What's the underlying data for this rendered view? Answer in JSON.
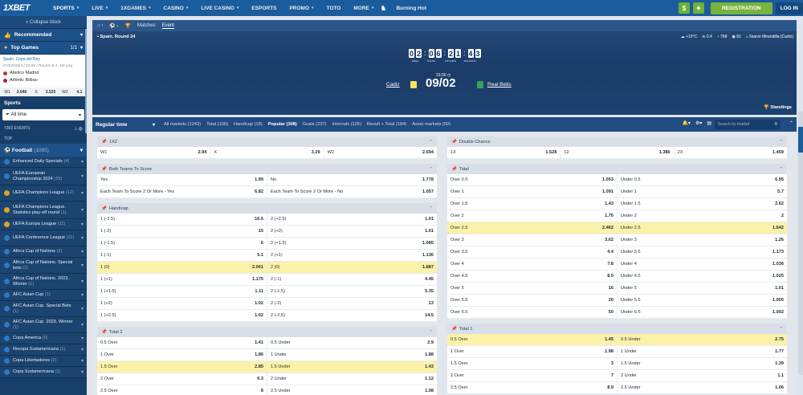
{
  "header": {
    "logo": "1XBET",
    "nav": [
      {
        "label": "SPORTS",
        "chev": true,
        "active": true
      },
      {
        "label": "LIVE",
        "chev": true
      },
      {
        "label": "1XGAMES",
        "chev": true
      },
      {
        "label": "CASINO",
        "chev": true
      },
      {
        "label": "LIVE CASINO",
        "chev": true
      },
      {
        "label": "ESPORTS",
        "chev": false
      },
      {
        "label": "PROMO",
        "chev": true
      },
      {
        "label": "TOTO",
        "chev": false
      },
      {
        "label": "MORE",
        "chev": true
      }
    ],
    "promo": "Burning Hot",
    "register": "REGISTRATION",
    "login": "LOG IN",
    "dollar": "$"
  },
  "sidebar": {
    "collapse": "Collapse block",
    "recommended": "Recommended",
    "top_games": "Top Games",
    "top_pager": "1/1",
    "game": {
      "league": "Spain. Copa del Rey",
      "date": "07/02/2024 / 23:00 / Round of 4. 1st Leg",
      "home": "Atletico Madrid",
      "away": "Athletic Bilbao",
      "odds": [
        [
          "W1",
          "2.046"
        ],
        [
          "X",
          "3.525"
        ],
        [
          "W2",
          "4.1"
        ]
      ]
    },
    "sports": "Sports",
    "filter": "All time",
    "events": "7363 EVENTS",
    "top": "TOP",
    "football": "Football",
    "football_count": "(1085)",
    "leagues": [
      {
        "name": "Enhanced Daily Specials",
        "count": "(4)",
        "cup": false,
        "h": 14
      },
      {
        "name": "UEFA European Championship 2024",
        "count": "(15)",
        "cup": false,
        "h": 22
      },
      {
        "name": "UEFA Champions League",
        "count": "(12)",
        "cup": true,
        "h": 20
      },
      {
        "name": "UEFA Champions League. Statistics play-off round",
        "count": "(1)",
        "cup": true,
        "h": 22
      },
      {
        "name": "UEFA Europa League",
        "count": "(11)",
        "cup": true,
        "h": 14
      },
      {
        "name": "UEFA Conference League",
        "count": "(11)",
        "cup": false,
        "h": 20
      },
      {
        "name": "Africa Cup of Nations",
        "count": "(2)",
        "cup": false,
        "h": 14
      },
      {
        "name": "Africa Cup of Nations. Special bets",
        "count": "(2)",
        "cup": false,
        "h": 20
      },
      {
        "name": "Africa Cup of Nations. 2023. Winner",
        "count": "(1)",
        "cup": false,
        "h": 20
      },
      {
        "name": "AFC Asian Cup",
        "count": "(1)",
        "cup": false,
        "h": 14
      },
      {
        "name": "AFC Asian Cup. Special Bets",
        "count": "(1)",
        "cup": false,
        "h": 20
      },
      {
        "name": "AFC Asian Cup. 2023. Winner",
        "count": "(1)",
        "cup": false,
        "h": 20
      },
      {
        "name": "Copa America",
        "count": "(6)",
        "cup": false,
        "h": 14
      },
      {
        "name": "Recopa Sudamericana",
        "count": "(1)",
        "cup": false,
        "h": 14
      },
      {
        "name": "Copa Libertadores",
        "count": "(2)",
        "cup": false,
        "h": 14
      },
      {
        "name": "Copa Sudamericana",
        "count": "(1)",
        "cup": false,
        "h": 14
      }
    ]
  },
  "match": {
    "tabs": [
      "Matches",
      "Event"
    ],
    "breadcrumb": "Spain. Round 24",
    "weather": [
      "+10°C",
      "0.4",
      "768",
      "81",
      "Nuevo Mirandilla (Cadiz)"
    ],
    "timer": [
      "0",
      "2",
      "0",
      "6",
      "2",
      "1",
      "4",
      "3"
    ],
    "timer_labels": [
      "days",
      "hours",
      "minutes",
      "seconds"
    ],
    "kickoff": "23:00",
    "date": "09/02",
    "home": "Cadiz",
    "away": "Real Betis",
    "standings": "Standings"
  },
  "market_tabs": {
    "regular": "Regular time",
    "tabs": [
      {
        "label": "All markets (1243)"
      },
      {
        "label": "Total (100)"
      },
      {
        "label": "Handicap (18)"
      },
      {
        "label": "Popular (308)",
        "active": true
      },
      {
        "label": "Goals (237)"
      },
      {
        "label": "Intervals (126)"
      },
      {
        "label": "Result + Total (184)"
      },
      {
        "label": "Asian markets (50)"
      }
    ],
    "search_placeholder": "Search by market"
  },
  "markets_left": [
    {
      "title": "1X2",
      "cols": 3,
      "rows": [
        [
          [
            "W1",
            "2.94"
          ],
          [
            "X",
            "3.29"
          ],
          [
            "W2",
            "2.694"
          ]
        ]
      ]
    },
    {
      "title": "Both Teams To Score",
      "cols": 2,
      "rows": [
        [
          [
            "Yes",
            "1.99"
          ],
          [
            "No",
            "1.778"
          ]
        ],
        [
          [
            "Each Team To Score 2 Or More - Yes",
            "6.82"
          ],
          [
            "Each Team To Score 2 Or More - No",
            "1.057"
          ]
        ]
      ]
    },
    {
      "title": "Handicap",
      "cols": 2,
      "rows": [
        [
          [
            "1 (-2.5)",
            "16.5"
          ],
          [
            "2 (+2.5)",
            "1.01"
          ]
        ],
        [
          [
            "1 (-2)",
            "15"
          ],
          [
            "2 (+2)",
            "1.01"
          ]
        ],
        [
          [
            "1 (-1.5)",
            "6"
          ],
          [
            "2 (+1.5)",
            "1.085"
          ]
        ],
        [
          [
            "1 (-1)",
            "5.1"
          ],
          [
            "2 (+1)",
            "1.136"
          ]
        ],
        [
          [
            "1 (0)",
            "2.061"
          ],
          [
            "2 (0)",
            "1.887"
          ]
        ],
        [
          [
            "1 (+1)",
            "1.175"
          ],
          [
            "2 (-1)",
            "4.45"
          ]
        ],
        [
          [
            "1 (+1.5)",
            "1.11"
          ],
          [
            "2 (-1.5)",
            "5.35"
          ]
        ],
        [
          [
            "1 (+2)",
            "1.02"
          ],
          [
            "2 (-2)",
            "13"
          ]
        ],
        [
          [
            "1 (+2.5)",
            "1.02"
          ],
          [
            "2 (-2.5)",
            "14.5"
          ]
        ]
      ],
      "hl": [
        4
      ]
    },
    {
      "title": "Total 2",
      "cols": 2,
      "rows": [
        [
          [
            "0.5 Over",
            "1.41"
          ],
          [
            "0.5 Under",
            "2.9"
          ]
        ],
        [
          [
            "1 Over",
            "1.86"
          ],
          [
            "1 Under",
            "1.88"
          ]
        ],
        [
          [
            "1.5 Over",
            "2.85"
          ],
          [
            "1.5 Under",
            "1.43"
          ]
        ],
        [
          [
            "2 Over",
            "6.3"
          ],
          [
            "2 Under",
            "1.12"
          ]
        ],
        [
          [
            "2.5 Over",
            "8"
          ],
          [
            "2.5 Under",
            "1.08"
          ]
        ]
      ],
      "hl": [
        2
      ]
    }
  ],
  "markets_right": [
    {
      "title": "Double Chance",
      "cols": 3,
      "rows": [
        [
          [
            "1X",
            "1.528"
          ],
          [
            "12",
            "1.386"
          ],
          [
            "2X",
            "1.459"
          ]
        ]
      ]
    },
    {
      "title": "Total",
      "cols": 2,
      "rows": [
        [
          [
            "Over 0.5",
            "1.053"
          ],
          [
            "Under 0.5",
            "6.95"
          ]
        ],
        [
          [
            "Over 1",
            "1.091"
          ],
          [
            "Under 1",
            "5.7"
          ]
        ],
        [
          [
            "Over 1.5",
            "1.43"
          ],
          [
            "Under 1.5",
            "2.62"
          ]
        ],
        [
          [
            "Over 2",
            "1.76"
          ],
          [
            "Under 2",
            "2"
          ]
        ],
        [
          [
            "Over 2.5",
            "2.462"
          ],
          [
            "Under 2.5",
            "1.642"
          ]
        ],
        [
          [
            "Over 3",
            "3.62"
          ],
          [
            "Under 3",
            "1.26"
          ]
        ],
        [
          [
            "Over 3.5",
            "4.4"
          ],
          [
            "Under 3.5",
            "1.173"
          ]
        ],
        [
          [
            "Over 4",
            "7.8"
          ],
          [
            "Under 4",
            "1.036"
          ]
        ],
        [
          [
            "Over 4.5",
            "8.5"
          ],
          [
            "Under 4.5",
            "1.025"
          ]
        ],
        [
          [
            "Over 5",
            "16"
          ],
          [
            "Under 5",
            "1.01"
          ]
        ],
        [
          [
            "Over 5.5",
            "20"
          ],
          [
            "Under 5.5",
            "1.005"
          ]
        ],
        [
          [
            "Over 6.5",
            "50"
          ],
          [
            "Under 6.5",
            "1.002"
          ]
        ]
      ],
      "hl": [
        4
      ]
    },
    {
      "title": "Total 1",
      "cols": 2,
      "rows": [
        [
          [
            "0.5 Over",
            "1.45"
          ],
          [
            "0.5 Under",
            "2.75"
          ]
        ],
        [
          [
            "1 Over",
            "1.98"
          ],
          [
            "1 Under",
            "1.77"
          ]
        ],
        [
          [
            "1.5 Over",
            "3"
          ],
          [
            "1.5 Under",
            "1.39"
          ]
        ],
        [
          [
            "2 Over",
            "7"
          ],
          [
            "2 Under",
            "1.1"
          ]
        ],
        [
          [
            "2.5 Over",
            "8.9"
          ],
          [
            "2.5 Under",
            "1.06"
          ]
        ]
      ],
      "hl": [
        0
      ]
    }
  ]
}
